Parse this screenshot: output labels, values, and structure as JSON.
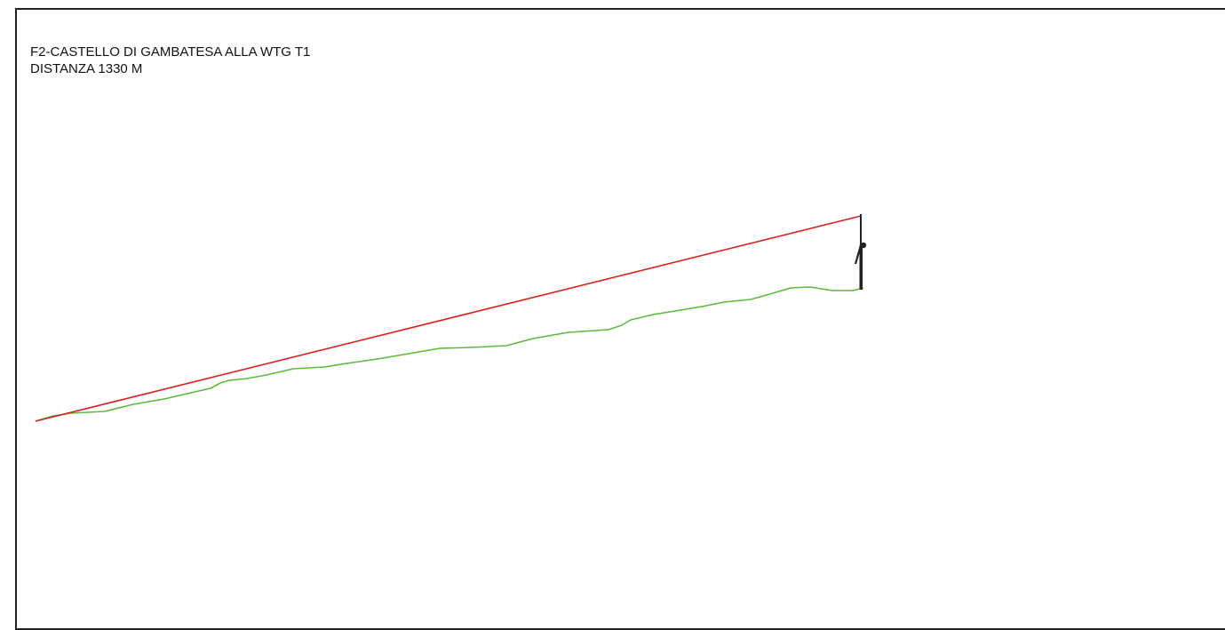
{
  "title": {
    "line1": "F2-CASTELLO DI GAMBATESA ALLA WTG T1",
    "line2": "DISTANZA 1330 M"
  },
  "colors": {
    "sight_line": "#e02020",
    "terrain": "#5bbb3a",
    "turbine": "#222222",
    "frame": "#222222"
  }
}
